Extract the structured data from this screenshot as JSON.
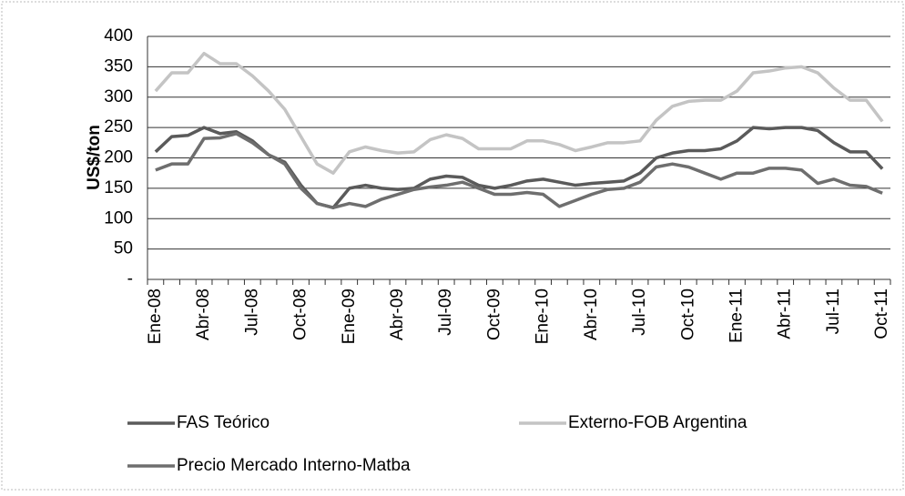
{
  "chart_data": {
    "type": "line",
    "ylabel": "US$/ton",
    "categories": [
      "Ene-08",
      null,
      null,
      "Abr-08",
      null,
      null,
      "Jul-08",
      null,
      null,
      "Oct-08",
      null,
      null,
      "Ene-09",
      null,
      null,
      "Abr-09",
      null,
      null,
      "Jul-09",
      null,
      null,
      "Oct-09",
      null,
      null,
      "Ene-10",
      null,
      null,
      "Abr-10",
      null,
      null,
      "Jul-10",
      null,
      null,
      "Oct-10",
      null,
      null,
      "Ene-11",
      null,
      null,
      "Abr-11",
      null,
      null,
      "Jul-11",
      null,
      null,
      "Oct-11"
    ],
    "series": [
      {
        "name": "FAS Teórico",
        "color": "#5a5a5a",
        "values": [
          210,
          235,
          237,
          250,
          240,
          243,
          228,
          205,
          193,
          155,
          125,
          118,
          150,
          155,
          150,
          148,
          150,
          165,
          170,
          168,
          155,
          150,
          155,
          162,
          165,
          160,
          155,
          158,
          160,
          162,
          175,
          200,
          208,
          212,
          212,
          215,
          228,
          250,
          248,
          250,
          250,
          245,
          225,
          210,
          210,
          182
        ]
      },
      {
        "name": "Externo-FOB Argentina",
        "color": "#c4c4c4",
        "values": [
          310,
          340,
          340,
          372,
          355,
          355,
          335,
          310,
          280,
          235,
          190,
          175,
          210,
          218,
          212,
          208,
          210,
          230,
          238,
          232,
          215,
          215,
          215,
          228,
          228,
          222,
          212,
          218,
          225,
          225,
          228,
          262,
          285,
          293,
          295,
          295,
          310,
          340,
          343,
          348,
          350,
          340,
          315,
          295,
          295,
          260
        ]
      },
      {
        "name": "Precio Mercado Interno-Matba",
        "color": "#6e6e6e",
        "values": [
          180,
          190,
          190,
          232,
          233,
          240,
          225,
          205,
          190,
          150,
          125,
          118,
          125,
          120,
          132,
          140,
          148,
          152,
          155,
          160,
          150,
          140,
          140,
          143,
          140,
          120,
          130,
          140,
          148,
          150,
          160,
          185,
          190,
          185,
          175,
          165,
          175,
          175,
          183,
          183,
          180,
          158,
          165,
          155,
          153,
          142
        ]
      }
    ],
    "ylim": [
      0,
      400
    ],
    "yticks": [
      {
        "value": 0,
        "label": "-"
      },
      50,
      100,
      150,
      200,
      250,
      300,
      350,
      400
    ],
    "grid": true
  }
}
